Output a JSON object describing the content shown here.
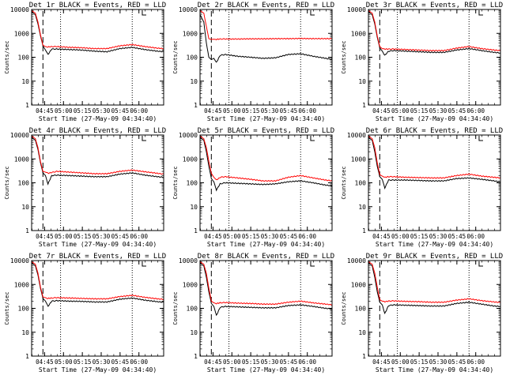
{
  "figure": {
    "ylabel": "Counts/sec",
    "xlabel": "Start Time (27-May-09 04:34:40)",
    "x_ticks": [
      "04:45",
      "05:00",
      "05:15",
      "05:30",
      "05:45",
      "06:00"
    ],
    "y_ticks": [
      "1",
      "10",
      "100",
      "1000",
      "10000"
    ],
    "colors": {
      "events": "#000000",
      "lld": "#ff0000",
      "axes": "#000000",
      "background": "#ffffff"
    }
  },
  "chart_data": [
    {
      "type": "line",
      "title": "Det 1r  BLACK = Events, RED = LLD",
      "xlabel": "Start Time (27-May-09 04:34:40)",
      "ylabel": "Counts/sec",
      "xlim": [
        0,
        105
      ],
      "ylim": [
        1,
        10000
      ],
      "yscale": "log",
      "grid": false,
      "dashed_line_x": 9,
      "dotted_lines_x": [
        23,
        80
      ],
      "marker_x": 88,
      "series": [
        {
          "name": "Events",
          "color": "#000000",
          "x": [
            0,
            3,
            5,
            7,
            9,
            11,
            13,
            16,
            20,
            30,
            40,
            50,
            60,
            70,
            80,
            90,
            100,
            105
          ],
          "values": [
            8000,
            6000,
            2500,
            800,
            300,
            200,
            130,
            220,
            220,
            210,
            200,
            180,
            170,
            230,
            260,
            210,
            180,
            170
          ]
        },
        {
          "name": "LLD",
          "color": "#ff0000",
          "x": [
            0,
            3,
            5,
            7,
            9,
            11,
            13,
            16,
            20,
            30,
            40,
            50,
            60,
            70,
            80,
            90,
            100,
            105
          ],
          "values": [
            9000,
            7000,
            3000,
            900,
            320,
            280,
            270,
            280,
            280,
            260,
            250,
            230,
            230,
            300,
            340,
            280,
            240,
            230
          ]
        }
      ]
    },
    {
      "type": "line",
      "title": "Det 2r  BLACK = Events, RED = LLD",
      "xlabel": "Start Time (27-May-09 04:34:40)",
      "ylabel": "Counts/sec",
      "xlim": [
        0,
        105
      ],
      "ylim": [
        1,
        10000
      ],
      "yscale": "log",
      "grid": false,
      "dashed_line_x": 9,
      "dotted_lines_x": [
        23,
        80
      ],
      "marker_x": 88,
      "series": [
        {
          "name": "Events",
          "color": "#000000",
          "x": [
            0,
            3,
            5,
            7,
            9,
            11,
            13,
            16,
            20,
            30,
            40,
            50,
            60,
            70,
            80,
            90,
            100,
            105
          ],
          "values": [
            6000,
            3000,
            400,
            100,
            80,
            90,
            60,
            120,
            130,
            110,
            100,
            90,
            95,
            130,
            140,
            110,
            90,
            80
          ]
        },
        {
          "name": "LLD",
          "color": "#ff0000",
          "x": [
            0,
            3,
            5,
            7,
            9,
            11,
            13,
            16,
            20,
            30,
            40,
            50,
            60,
            70,
            80,
            90,
            100,
            105
          ],
          "values": [
            9000,
            7000,
            2000,
            600,
            560,
            570,
            560,
            580,
            580,
            580,
            590,
            590,
            600,
            600,
            610,
            600,
            600,
            600
          ]
        }
      ]
    },
    {
      "type": "line",
      "title": "Det 3r  BLACK = Events, RED = LLD",
      "xlabel": "Start Time (27-May-09 04:34:40)",
      "ylabel": "Counts/sec",
      "xlim": [
        0,
        105
      ],
      "ylim": [
        1,
        10000
      ],
      "yscale": "log",
      "grid": false,
      "dashed_line_x": 9,
      "dotted_lines_x": [
        23,
        80
      ],
      "marker_x": 88,
      "series": [
        {
          "name": "Events",
          "color": "#000000",
          "x": [
            0,
            3,
            5,
            7,
            9,
            11,
            13,
            16,
            20,
            30,
            40,
            50,
            60,
            70,
            80,
            90,
            100,
            105
          ],
          "values": [
            8000,
            6000,
            2500,
            700,
            250,
            180,
            120,
            180,
            190,
            180,
            170,
            160,
            160,
            200,
            230,
            190,
            160,
            150
          ]
        },
        {
          "name": "LLD",
          "color": "#ff0000",
          "x": [
            0,
            3,
            5,
            7,
            9,
            11,
            13,
            16,
            20,
            30,
            40,
            50,
            60,
            70,
            80,
            90,
            100,
            105
          ],
          "values": [
            9000,
            7000,
            3000,
            800,
            280,
            230,
            220,
            220,
            220,
            210,
            200,
            190,
            190,
            240,
            280,
            230,
            200,
            190
          ]
        }
      ]
    },
    {
      "type": "line",
      "title": "Det 4r  BLACK = Events, RED = LLD",
      "xlabel": "Start Time (27-May-09 04:34:40)",
      "ylabel": "Counts/sec",
      "xlim": [
        0,
        105
      ],
      "ylim": [
        1,
        10000
      ],
      "yscale": "log",
      "grid": false,
      "dashed_line_x": 9,
      "dotted_lines_x": [
        23,
        80
      ],
      "marker_x": 88,
      "series": [
        {
          "name": "Events",
          "color": "#000000",
          "x": [
            0,
            3,
            5,
            7,
            9,
            11,
            13,
            16,
            20,
            30,
            40,
            50,
            60,
            70,
            80,
            90,
            100,
            105
          ],
          "values": [
            8000,
            6000,
            2500,
            700,
            260,
            200,
            90,
            200,
            210,
            200,
            190,
            180,
            180,
            230,
            260,
            210,
            180,
            170
          ]
        },
        {
          "name": "LLD",
          "color": "#ff0000",
          "x": [
            0,
            3,
            5,
            7,
            9,
            11,
            13,
            16,
            20,
            30,
            40,
            50,
            60,
            70,
            80,
            90,
            100,
            105
          ],
          "values": [
            9000,
            7000,
            3000,
            800,
            300,
            280,
            250,
            270,
            300,
            280,
            260,
            240,
            240,
            300,
            340,
            290,
            250,
            230
          ]
        }
      ]
    },
    {
      "type": "line",
      "title": "Det 5r  BLACK = Events, RED = LLD",
      "xlabel": "Start Time (27-May-09 04:34:40)",
      "ylabel": "Counts/sec",
      "xlim": [
        0,
        105
      ],
      "ylim": [
        1,
        10000
      ],
      "yscale": "log",
      "grid": false,
      "dashed_line_x": 9,
      "dotted_lines_x": [
        23,
        80
      ],
      "marker_x": 88,
      "series": [
        {
          "name": "Events",
          "color": "#000000",
          "x": [
            0,
            3,
            5,
            7,
            9,
            11,
            13,
            16,
            20,
            30,
            40,
            50,
            60,
            70,
            80,
            90,
            100,
            105
          ],
          "values": [
            8000,
            6000,
            2000,
            500,
            150,
            110,
            50,
            90,
            100,
            95,
            90,
            85,
            90,
            110,
            120,
            100,
            80,
            75
          ]
        },
        {
          "name": "LLD",
          "color": "#ff0000",
          "x": [
            0,
            3,
            5,
            7,
            9,
            11,
            13,
            16,
            20,
            30,
            40,
            50,
            60,
            70,
            80,
            90,
            100,
            105
          ],
          "values": [
            9000,
            7000,
            3000,
            800,
            250,
            170,
            130,
            170,
            180,
            160,
            140,
            120,
            120,
            170,
            200,
            160,
            130,
            120
          ]
        }
      ]
    },
    {
      "type": "line",
      "title": "Det 6r  BLACK = Events, RED = LLD",
      "xlabel": "Start Time (27-May-09 04:34:40)",
      "ylabel": "Counts/sec",
      "xlim": [
        0,
        105
      ],
      "ylim": [
        1,
        10000
      ],
      "yscale": "log",
      "grid": false,
      "dashed_line_x": 9,
      "dotted_lines_x": [
        23,
        80
      ],
      "marker_x": 88,
      "series": [
        {
          "name": "Events",
          "color": "#000000",
          "x": [
            0,
            3,
            5,
            7,
            9,
            11,
            13,
            16,
            20,
            30,
            40,
            50,
            60,
            70,
            80,
            90,
            100,
            105
          ],
          "values": [
            8000,
            6000,
            2000,
            500,
            180,
            140,
            60,
            130,
            130,
            130,
            125,
            120,
            120,
            150,
            160,
            140,
            120,
            110
          ]
        },
        {
          "name": "LLD",
          "color": "#ff0000",
          "x": [
            0,
            3,
            5,
            7,
            9,
            11,
            13,
            16,
            20,
            30,
            40,
            50,
            60,
            70,
            80,
            90,
            100,
            105
          ],
          "values": [
            9000,
            7000,
            3000,
            700,
            220,
            190,
            170,
            180,
            180,
            170,
            165,
            160,
            160,
            200,
            230,
            190,
            170,
            160
          ]
        }
      ]
    },
    {
      "type": "line",
      "title": "Det 7r  BLACK = Events, RED = LLD",
      "xlabel": "Start Time (27-May-09 04:34:40)",
      "ylabel": "Counts/sec",
      "xlim": [
        0,
        105
      ],
      "ylim": [
        1,
        10000
      ],
      "yscale": "log",
      "grid": false,
      "dashed_line_x": 9,
      "dotted_lines_x": [
        23,
        80
      ],
      "marker_x": 88,
      "series": [
        {
          "name": "Events",
          "color": "#000000",
          "x": [
            0,
            3,
            5,
            7,
            9,
            11,
            13,
            16,
            20,
            30,
            40,
            50,
            60,
            70,
            80,
            90,
            100,
            105
          ],
          "values": [
            8000,
            6000,
            2500,
            700,
            260,
            200,
            120,
            200,
            210,
            200,
            195,
            185,
            185,
            240,
            270,
            220,
            190,
            180
          ]
        },
        {
          "name": "LLD",
          "color": "#ff0000",
          "x": [
            0,
            3,
            5,
            7,
            9,
            11,
            13,
            16,
            20,
            30,
            40,
            50,
            60,
            70,
            80,
            90,
            100,
            105
          ],
          "values": [
            9000,
            7000,
            3000,
            800,
            300,
            280,
            260,
            270,
            280,
            270,
            260,
            250,
            250,
            310,
            350,
            290,
            250,
            240
          ]
        }
      ]
    },
    {
      "type": "line",
      "title": "Det 8r  BLACK = Events, RED = LLD",
      "xlabel": "Start Time (27-May-09 04:34:40)",
      "ylabel": "Counts/sec",
      "xlim": [
        0,
        105
      ],
      "ylim": [
        1,
        10000
      ],
      "yscale": "log",
      "grid": false,
      "dashed_line_x": 9,
      "dotted_lines_x": [
        23,
        80
      ],
      "marker_x": 88,
      "series": [
        {
          "name": "Events",
          "color": "#000000",
          "x": [
            0,
            3,
            5,
            7,
            9,
            11,
            13,
            16,
            20,
            30,
            40,
            50,
            60,
            70,
            80,
            90,
            100,
            105
          ],
          "values": [
            8000,
            6000,
            2000,
            500,
            160,
            120,
            50,
            110,
            120,
            115,
            110,
            105,
            105,
            130,
            140,
            120,
            100,
            95
          ]
        },
        {
          "name": "LLD",
          "color": "#ff0000",
          "x": [
            0,
            3,
            5,
            7,
            9,
            11,
            13,
            16,
            20,
            30,
            40,
            50,
            60,
            70,
            80,
            90,
            100,
            105
          ],
          "values": [
            9000,
            7000,
            3000,
            700,
            200,
            170,
            160,
            170,
            175,
            165,
            160,
            150,
            150,
            180,
            200,
            170,
            150,
            140
          ]
        }
      ]
    },
    {
      "type": "line",
      "title": "Det 9r  BLACK = Events, RED = LLD",
      "xlabel": "Start Time (27-May-09 04:34:40)",
      "ylabel": "Counts/sec",
      "xlim": [
        0,
        105
      ],
      "ylim": [
        1,
        10000
      ],
      "yscale": "log",
      "grid": false,
      "dashed_line_x": 9,
      "dotted_lines_x": [
        23,
        80
      ],
      "marker_x": 88,
      "series": [
        {
          "name": "Events",
          "color": "#000000",
          "x": [
            0,
            3,
            5,
            7,
            9,
            11,
            13,
            16,
            20,
            30,
            40,
            50,
            60,
            70,
            80,
            90,
            100,
            105
          ],
          "values": [
            8000,
            6000,
            2000,
            500,
            180,
            140,
            60,
            130,
            140,
            135,
            130,
            125,
            125,
            160,
            180,
            150,
            125,
            120
          ]
        },
        {
          "name": "LLD",
          "color": "#ff0000",
          "x": [
            0,
            3,
            5,
            7,
            9,
            11,
            13,
            16,
            20,
            30,
            40,
            50,
            60,
            70,
            80,
            90,
            100,
            105
          ],
          "values": [
            9000,
            7000,
            3000,
            800,
            230,
            200,
            190,
            200,
            205,
            195,
            190,
            180,
            180,
            220,
            250,
            210,
            185,
            175
          ]
        }
      ]
    }
  ]
}
